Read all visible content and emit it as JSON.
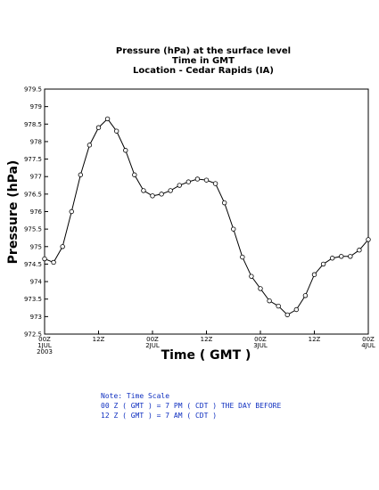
{
  "chart_data": {
    "type": "line",
    "title": [
      "Pressure (hPa) at the surface level",
      "Time in GMT",
      "Location - Cedar Rapids (IA)"
    ],
    "y_label": "Pressure (hPa)",
    "x_label": "Time ( GMT )",
    "notes": [
      "Note: Time Scale",
      "00 Z ( GMT ) = 7 PM ( CDT ) THE DAY BEFORE",
      "12 Z ( GMT ) = 7 AM ( CDT )"
    ],
    "x": [
      0,
      2,
      4,
      6,
      8,
      10,
      12,
      14,
      16,
      18,
      20,
      22,
      24,
      26,
      28,
      30,
      32,
      34,
      36,
      38,
      40,
      42,
      44,
      46,
      48,
      50,
      52,
      54,
      56,
      58,
      60,
      62,
      64,
      66,
      68,
      70,
      72
    ],
    "series": [
      {
        "name": "Pressure",
        "color": "#000000",
        "values": [
          974.65,
          974.55,
          975.0,
          976.0,
          977.05,
          977.9,
          978.4,
          978.65,
          978.3,
          977.75,
          977.05,
          976.6,
          976.45,
          976.5,
          976.6,
          976.75,
          976.85,
          976.93,
          976.9,
          976.8,
          976.25,
          975.5,
          974.7,
          974.15,
          973.8,
          973.45,
          973.3,
          973.05,
          973.2,
          973.6,
          974.2,
          974.5,
          974.67,
          974.72,
          974.72,
          974.9,
          975.2
        ]
      }
    ],
    "xlim": [
      0,
      72
    ],
    "xticks": [
      {
        "value": 0,
        "label": [
          "00Z",
          "1JUL",
          "2003"
        ]
      },
      {
        "value": 12,
        "label": [
          "12Z"
        ]
      },
      {
        "value": 24,
        "label": [
          "00Z",
          "2JUL"
        ]
      },
      {
        "value": 36,
        "label": [
          "12Z"
        ]
      },
      {
        "value": 48,
        "label": [
          "00Z",
          "3JUL"
        ]
      },
      {
        "value": 60,
        "label": [
          "12Z"
        ]
      },
      {
        "value": 72,
        "label": [
          "00Z",
          "4JUL"
        ]
      }
    ],
    "ylim": [
      972.5,
      979.5
    ],
    "yticks": [
      972.5,
      973,
      973.5,
      974,
      974.5,
      975,
      975.5,
      976,
      976.5,
      977,
      977.5,
      978,
      978.5,
      979,
      979.5
    ]
  }
}
